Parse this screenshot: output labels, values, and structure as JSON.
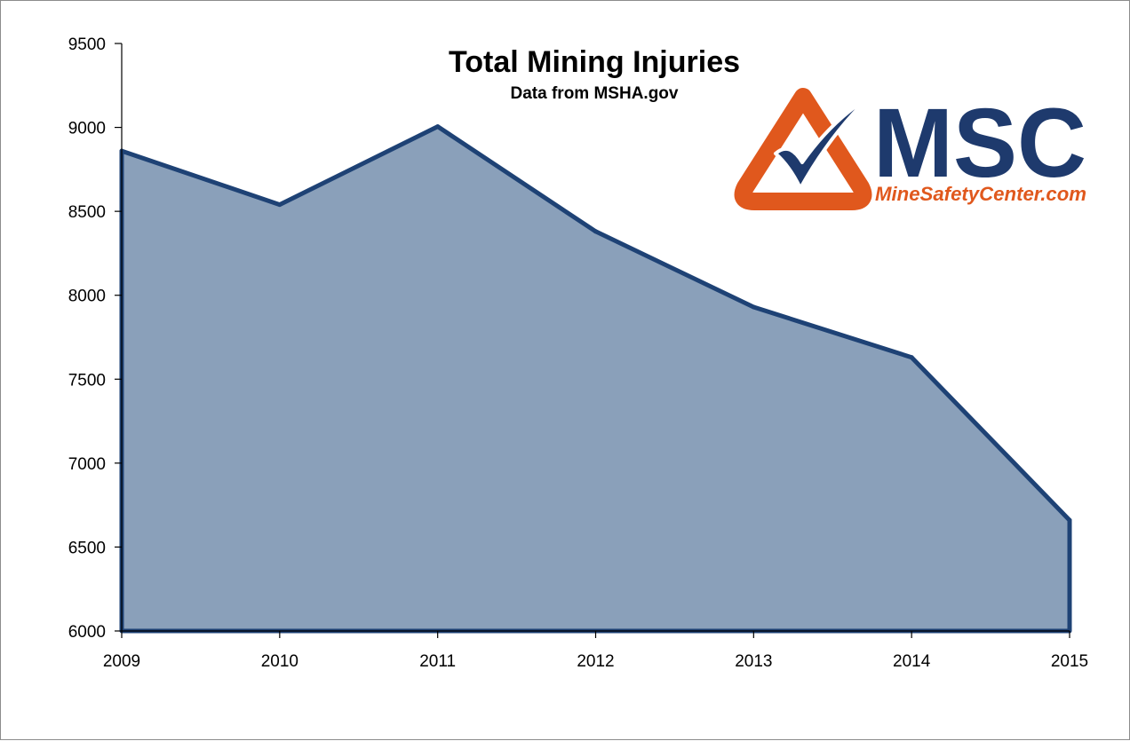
{
  "chart_data": {
    "type": "area",
    "title": "Total Mining Injuries",
    "subtitle": "Data from MSHA.gov",
    "categories": [
      "2009",
      "2010",
      "2011",
      "2012",
      "2013",
      "2014",
      "2015"
    ],
    "series": [
      {
        "values": [
          8860,
          8540,
          9005,
          8380,
          7930,
          7630,
          6660
        ]
      }
    ],
    "ylim": [
      6000,
      9500
    ],
    "yticks": [
      "6000",
      "6500",
      "7000",
      "7500",
      "8000",
      "8500",
      "9000",
      "9500"
    ],
    "xlabel": "",
    "ylabel": "",
    "grid": false,
    "colors": {
      "fill": "#8aa0ba",
      "line": "#1e4275"
    }
  },
  "logo": {
    "acronym": "MSC",
    "tagline": "MineSafetyCenter.com",
    "icon": "checkmark-in-triangle-icon",
    "colors": {
      "orange": "#e0581d",
      "navy": "#1e3a6d"
    }
  }
}
